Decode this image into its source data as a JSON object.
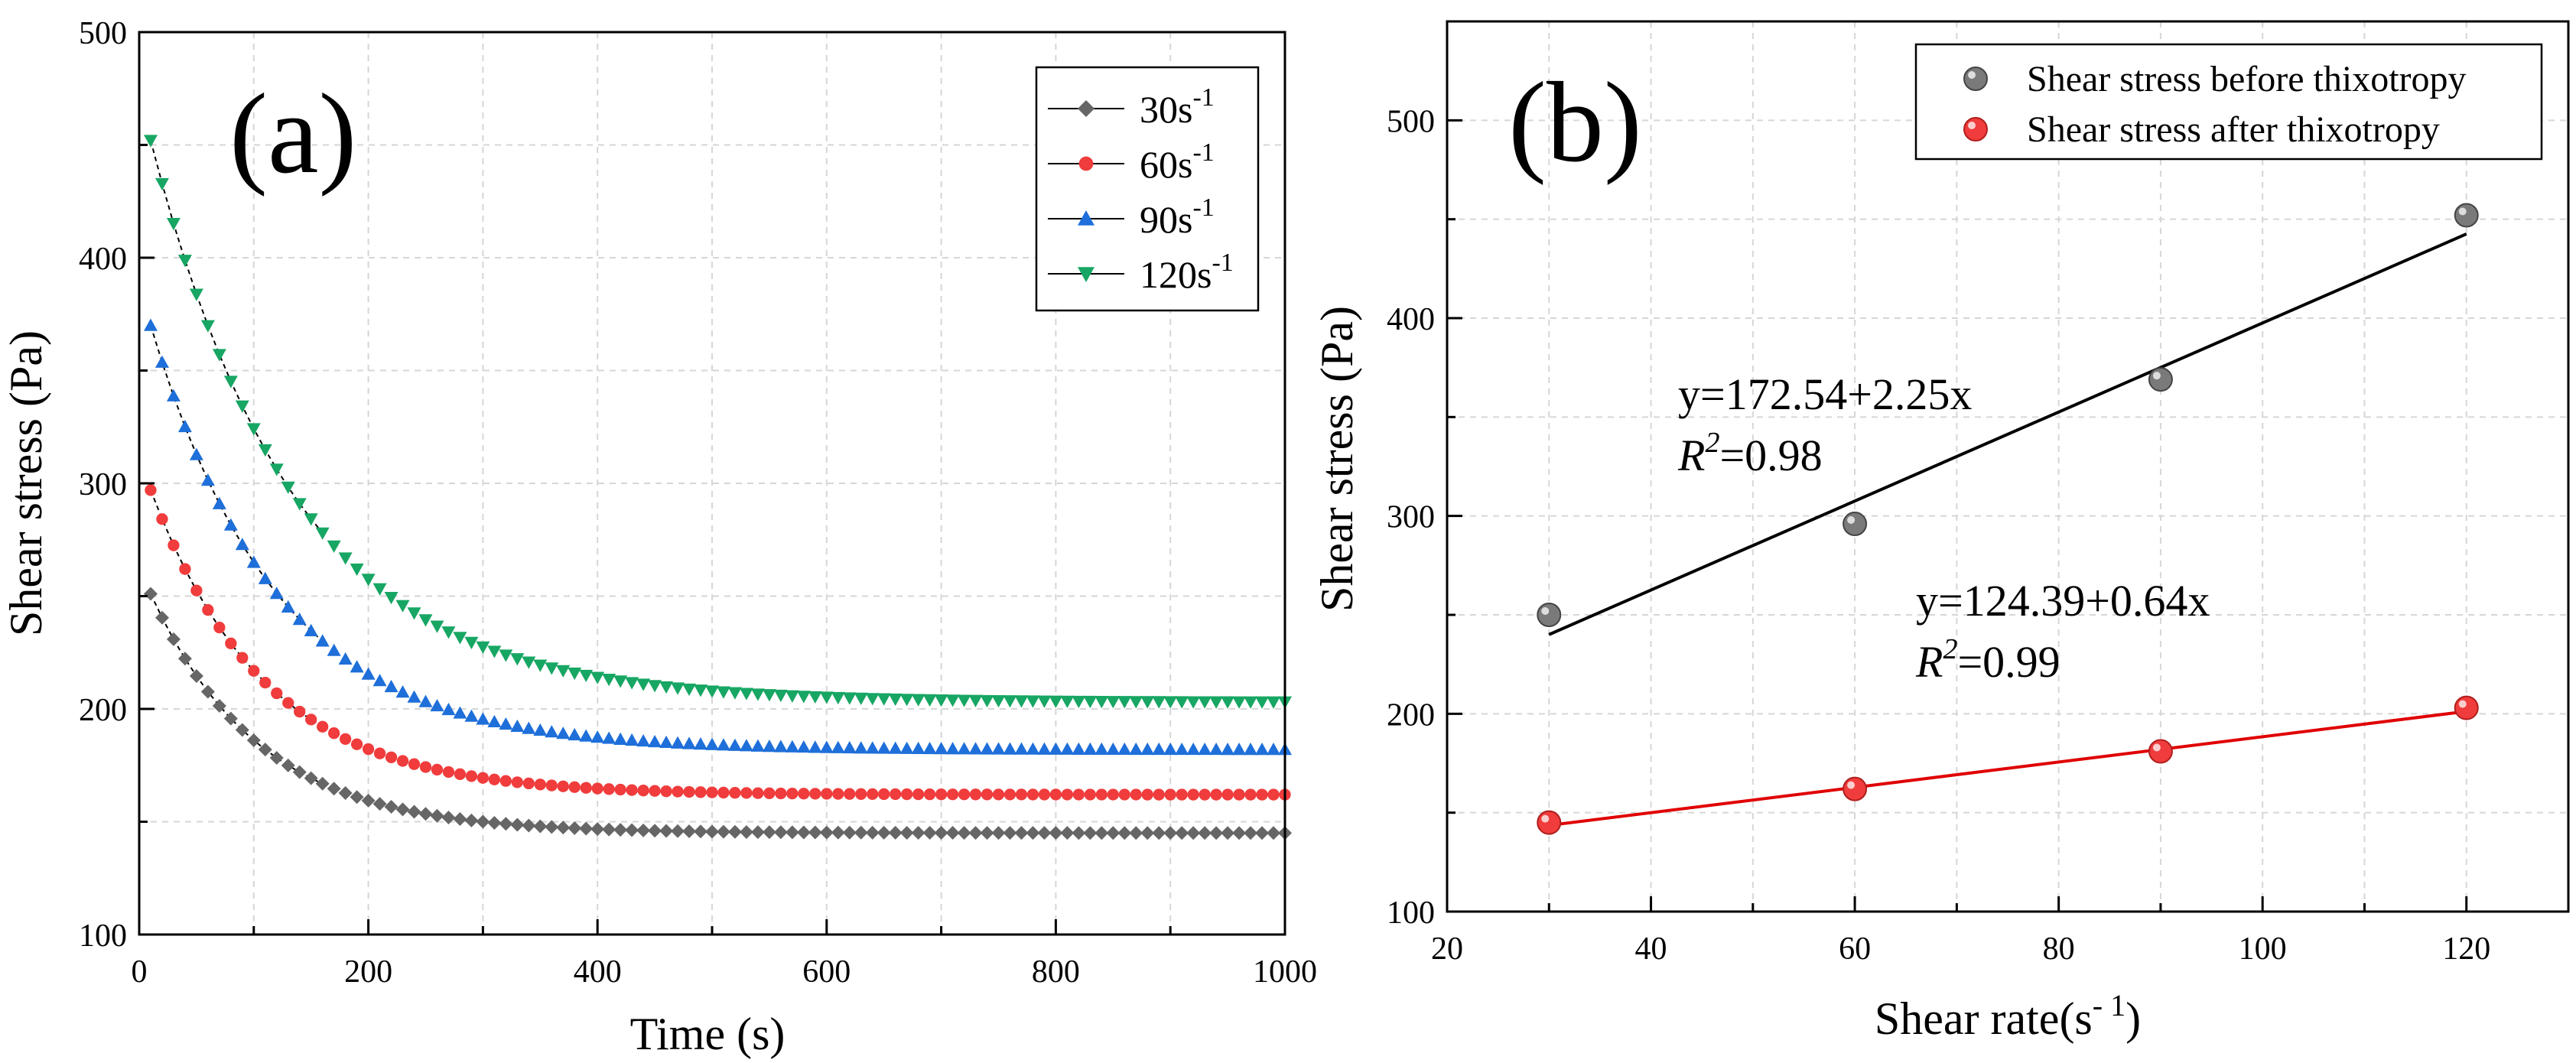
{
  "chart_data": [
    {
      "panel_label": "(a)",
      "type": "scatter-line",
      "xlabel": "Time (s)",
      "ylabel": "Shear stress (Pa)",
      "xlim": [
        0,
        1000
      ],
      "ylim": [
        100,
        500
      ],
      "xticks": [
        0,
        200,
        400,
        600,
        800,
        1000
      ],
      "yticks": [
        100,
        200,
        300,
        400,
        500
      ],
      "grid": true,
      "legend_position": "top-right",
      "series": [
        {
          "name": "30s",
          "sup": "-1",
          "color": "#666666",
          "marker": "diamond",
          "x_start": 10,
          "x_step": 10,
          "count": 100,
          "curve": {
            "v0": 251,
            "vinf": 145,
            "tau": 95
          }
        },
        {
          "name": "60s",
          "sup": "-1",
          "color": "#f03c3c",
          "marker": "circle",
          "x_start": 10,
          "x_step": 10,
          "count": 100,
          "curve": {
            "v0": 297,
            "vinf": 162,
            "tau": 100
          }
        },
        {
          "name": "90s",
          "sup": "-1",
          "color": "#1e6fd9",
          "marker": "triangle-up",
          "x_start": 10,
          "x_step": 10,
          "count": 100,
          "curve": {
            "v0": 370,
            "vinf": 182,
            "tau": 110
          }
        },
        {
          "name": "120s",
          "sup": "-1",
          "color": "#17a663",
          "marker": "triangle-down",
          "x_start": 10,
          "x_step": 10,
          "count": 100,
          "curve": {
            "v0": 452,
            "vinf": 203,
            "tau": 125
          }
        }
      ]
    },
    {
      "panel_label": "(b)",
      "type": "scatter-with-fit",
      "xlabel": "Shear rate",
      "xlabel_unit_open": "(s",
      "xlabel_unit_sup": "- 1",
      "xlabel_unit_close": ")",
      "ylabel": "Shear stress (Pa)",
      "xlim": [
        20,
        130
      ],
      "ylim": [
        100,
        550
      ],
      "xticks": [
        20,
        40,
        60,
        80,
        100,
        120
      ],
      "yticks": [
        100,
        200,
        300,
        400,
        500
      ],
      "grid": true,
      "legend_position": "top-right",
      "series": [
        {
          "name": "Shear stress before thixotropy",
          "color": "#7a7a7a",
          "x": [
            30,
            60,
            90,
            120
          ],
          "y": [
            250,
            296,
            369,
            452
          ],
          "fit": {
            "intercept": 172.54,
            "slope": 2.25
          }
        },
        {
          "name": "Shear stress after thixotropy",
          "color": "#f03c3c",
          "x": [
            30,
            60,
            90,
            120
          ],
          "y": [
            145,
            162,
            181,
            203
          ],
          "fit": {
            "intercept": 124.39,
            "slope": 0.64
          }
        }
      ],
      "annotations": [
        {
          "equation": "y=172.54+2.25x",
          "r2_label": "R",
          "r2_sup": "2",
          "r2_value": "=0.98"
        },
        {
          "equation": "y=124.39+0.64x",
          "r2_label": "R",
          "r2_sup": "2",
          "r2_value": "=0.99"
        }
      ]
    }
  ]
}
